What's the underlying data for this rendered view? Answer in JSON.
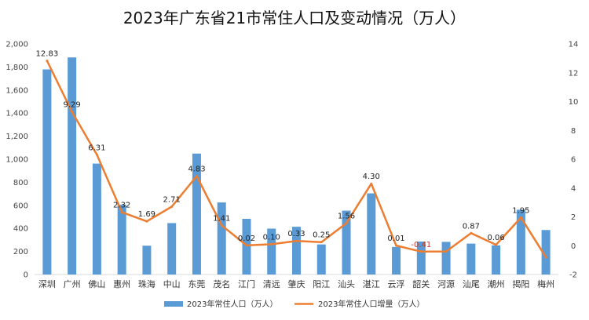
{
  "chart_data": {
    "type": "bar+line",
    "title": "2023年广东省21市常住人口及变动情况（万人）",
    "categories": [
      "深圳",
      "广州",
      "佛山",
      "惠州",
      "珠海",
      "中山",
      "东莞",
      "茂名",
      "江门",
      "清远",
      "肇庆",
      "阳江",
      "汕头",
      "湛江",
      "云浮",
      "韶关",
      "河源",
      "汕尾",
      "潮州",
      "揭阳",
      "梅州"
    ],
    "series": [
      {
        "name": "2023年常住人口（万人）",
        "type": "bar",
        "axis": "left",
        "color": "#5b9bd5",
        "values": [
          1779,
          1883,
          962,
          606,
          250,
          446,
          1049,
          625,
          483,
          398,
          414,
          261,
          554,
          704,
          239,
          286,
          283,
          268,
          253,
          562,
          386
        ]
      },
      {
        "name": "2023年常住人口增量（万人）",
        "type": "line",
        "axis": "right",
        "color": "#ed7d31",
        "values": [
          12.83,
          9.29,
          6.31,
          2.32,
          1.69,
          2.71,
          4.83,
          1.41,
          0.02,
          0.1,
          0.33,
          0.25,
          1.56,
          4.3,
          0.01,
          -0.41,
          -0.4,
          0.87,
          0.06,
          1.95,
          -0.8
        ],
        "labels": [
          "12.83",
          "9.29",
          "6.31",
          "2.32",
          "1.69",
          "2.71",
          "4.83",
          "1.41",
          "0.02",
          "0.10",
          "0.33",
          "0.25",
          "1.56",
          "4.30",
          "0.01",
          "-0.41",
          "",
          "0.87",
          "0.06",
          "1.95",
          ""
        ]
      }
    ],
    "y_left": {
      "min": 0,
      "max": 2000,
      "step": 200,
      "ticks": [
        "0",
        "200",
        "400",
        "600",
        "800",
        "1,000",
        "1,200",
        "1,400",
        "1,600",
        "1,800",
        "2,000"
      ]
    },
    "y_right": {
      "min": -2,
      "max": 14,
      "step": 2,
      "ticks": [
        "-2",
        "0",
        "2",
        "4",
        "6",
        "8",
        "10",
        "12",
        "14"
      ]
    },
    "legend_position": "bottom",
    "grid": false,
    "negative_label_color": "#c0392b"
  }
}
